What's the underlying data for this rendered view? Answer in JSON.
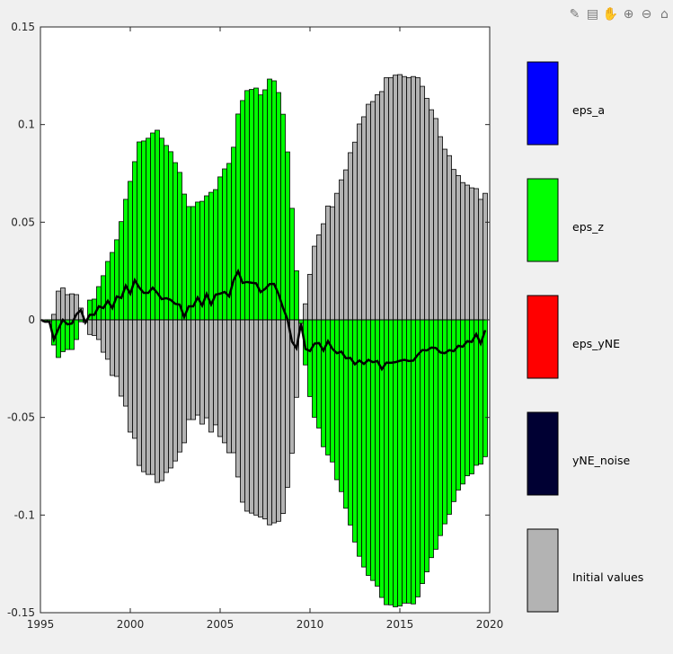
{
  "toolbar": {
    "icons": [
      "brush-icon",
      "legend-icon",
      "pan-hand-icon",
      "zoom-in-icon",
      "zoom-out-icon",
      "home-icon"
    ]
  },
  "chart_data": {
    "type": "bar",
    "stacked": true,
    "x_start": 1995.25,
    "x_step": 0.25,
    "xlim": [
      1995,
      2020
    ],
    "ylim": [
      -0.15,
      0.15
    ],
    "xticks": [
      "1995",
      "2000",
      "2005",
      "2010",
      "2015",
      "2020"
    ],
    "xtick_values": [
      1995,
      2000,
      2005,
      2010,
      2015,
      2020
    ],
    "yticks": [
      "0.15",
      "0.1",
      "0.05",
      "0",
      "-0.05",
      "-0.1",
      "-0.15"
    ],
    "ytick_values": [
      0.15,
      0.1,
      0.05,
      0,
      -0.05,
      -0.1,
      -0.15
    ],
    "grid": false,
    "legend_placement": "right",
    "legend": [
      {
        "name": "eps_a",
        "color": "#0000ff"
      },
      {
        "name": "eps_z",
        "color": "#00ff00"
      },
      {
        "name": "eps_yNE",
        "color": "#ff0000"
      },
      {
        "name": "yNE_noise",
        "color": "#000033"
      },
      {
        "name": "Initial values",
        "color": "#b3b3b3"
      }
    ],
    "total_line_color": "#000000",
    "series": [
      {
        "name": "eps_z",
        "color": "#00ff00",
        "values": [
          -0.001,
          -0.001,
          -0.0129,
          -0.0193,
          -0.0163,
          -0.0152,
          -0.0152,
          -0.0101,
          -0.001,
          0,
          0.0101,
          0.0106,
          0.017,
          0.0226,
          0.0299,
          0.0345,
          0.041,
          0.0503,
          0.0617,
          0.0709,
          0.081,
          0.0911,
          0.0916,
          0.093,
          0.0957,
          0.0971,
          0.093,
          0.0893,
          0.0861,
          0.0805,
          0.0755,
          0.0644,
          0.058,
          0.058,
          0.0603,
          0.0607,
          0.0635,
          0.0653,
          0.0667,
          0.0732,
          0.0773,
          0.0801,
          0.0884,
          0.1054,
          0.1123,
          0.1174,
          0.118,
          0.1187,
          0.1152,
          0.1178,
          0.1233,
          0.1224,
          0.1164,
          0.1053,
          0.086,
          0.0571,
          0.0251,
          -0.0018,
          -0.0231,
          -0.0393,
          -0.0499,
          -0.0554,
          -0.065,
          -0.0692,
          -0.0728,
          -0.0819,
          -0.088,
          -0.0965,
          -0.1051,
          -0.1138,
          -0.1211,
          -0.1266,
          -0.1309,
          -0.1335,
          -0.1364,
          -0.1422,
          -0.1459,
          -0.146,
          -0.147,
          -0.1466,
          -0.1451,
          -0.1451,
          -0.1455,
          -0.1419,
          -0.1351,
          -0.1291,
          -0.1218,
          -0.1175,
          -0.1105,
          -0.1045,
          -0.0996,
          -0.0931,
          -0.0872,
          -0.0841,
          -0.0799,
          -0.0789,
          -0.0745,
          -0.0739,
          -0.0701
        ]
      },
      {
        "name": "Initial values",
        "color": "#b3b3b3",
        "values": [
          0,
          0,
          0.0028,
          0.0147,
          0.0163,
          0.0129,
          0.0133,
          0.0129,
          0.006,
          -0.0014,
          -0.0075,
          -0.008,
          -0.0101,
          -0.0166,
          -0.0202,
          -0.0285,
          -0.029,
          -0.0391,
          -0.0442,
          -0.0575,
          -0.0607,
          -0.0746,
          -0.0778,
          -0.0792,
          -0.0792,
          -0.0833,
          -0.0824,
          -0.0782,
          -0.0759,
          -0.0723,
          -0.0677,
          -0.063,
          -0.0511,
          -0.0511,
          -0.0488,
          -0.0534,
          -0.0502,
          -0.0575,
          -0.0538,
          -0.0598,
          -0.063,
          -0.0681,
          -0.0681,
          -0.0805,
          -0.0934,
          -0.098,
          -0.099,
          -0.1,
          -0.101,
          -0.102,
          -0.105,
          -0.104,
          -0.1032,
          -0.0992,
          -0.0858,
          -0.0683,
          -0.0397,
          0,
          0.0082,
          0.0233,
          0.0377,
          0.0435,
          0.0492,
          0.0583,
          0.0579,
          0.0648,
          0.0717,
          0.0768,
          0.0856,
          0.091,
          0.1003,
          0.104,
          0.1104,
          0.1118,
          0.1153,
          0.1169,
          0.124,
          0.124,
          0.1253,
          0.1256,
          0.1246,
          0.124,
          0.1246,
          0.124,
          0.1196,
          0.1134,
          0.1076,
          0.1031,
          0.0938,
          0.0874,
          0.0841,
          0.077,
          0.0739,
          0.0703,
          0.069,
          0.0676,
          0.0672,
          0.0617,
          0.0648
        ]
      }
    ]
  }
}
